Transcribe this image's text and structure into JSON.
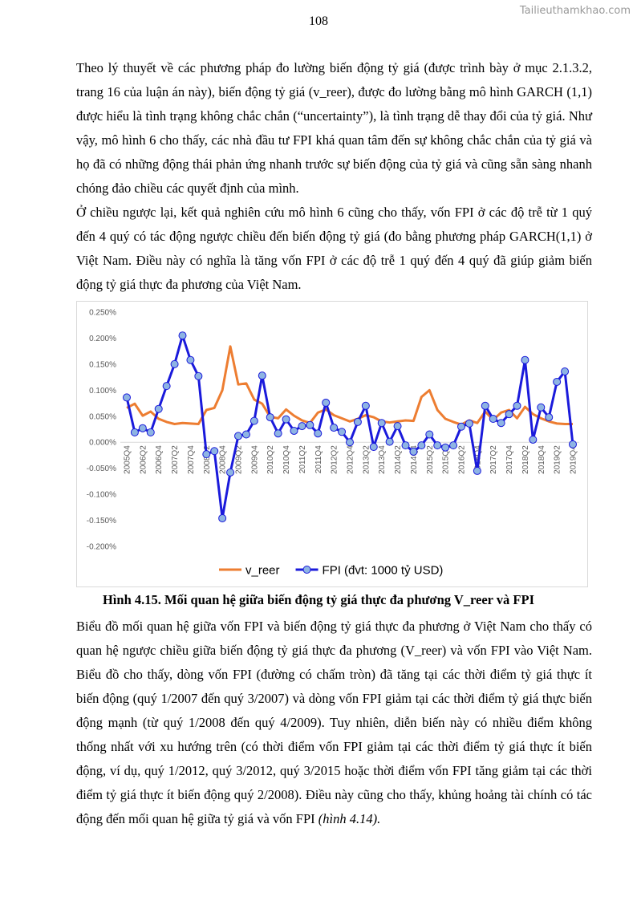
{
  "header": {
    "page_number": "108",
    "watermark": "Tailieuthamkhao.com"
  },
  "paragraphs_before": [
    "Theo lý thuyết về các phương pháp đo lường biến động tỷ giá (được trình bày ở mục 2.1.3.2, trang 16 của luận án này), biến động tỷ giá (v_reer), được đo lường bằng mô hình GARCH (1,1) được hiểu là tình trạng không chắc chắn (“uncertainty”), là tình trạng dễ thay đổi của tỷ giá. Như vậy, mô hình 6 cho thấy, các nhà đầu tư FPI khá quan tâm đến sự không chắc chắn của tỷ giá và họ đã có những động thái phản ứng nhanh trước sự biến động của tỷ giá và cũng sẵn sàng nhanh chóng đảo chiều các quyết định của mình.",
    "Ở chiều ngược lại, kết quả nghiên cứu mô hình 6 cũng cho thấy, vốn FPI ở các độ trễ từ 1 quý đến 4 quý có tác động ngược chiều đến biến động tỷ giá (đo bằng phương pháp GARCH(1,1) ở Việt Nam. Điều này có nghĩa là tăng vốn FPI ở các độ trễ 1 quý đến 4 quý đã giúp giảm biến động tỷ giá thực đa phương của Việt Nam."
  ],
  "chart_data": {
    "type": "line",
    "categories": [
      "2005Q4",
      null,
      "2006Q2",
      null,
      "2006Q4",
      null,
      "2007Q2",
      null,
      "2007Q4",
      null,
      "2008Q2",
      null,
      "2008Q4",
      null,
      "2009Q2",
      null,
      "2009Q4",
      null,
      "2010Q2",
      null,
      "2010Q4",
      null,
      "2011Q2",
      null,
      "2011Q4",
      null,
      "2012Q2",
      null,
      "2012Q4",
      null,
      "2013Q2",
      null,
      "2013Q4",
      null,
      "2014Q2",
      null,
      "2014Q4",
      null,
      "2015Q2",
      null,
      "2015Q4",
      null,
      "2016Q2",
      null,
      "2016Q4",
      null,
      "2017Q2",
      null,
      "2017Q4",
      null,
      "2018Q2",
      null,
      "2018Q4",
      null,
      "2019Q2",
      null,
      "2019Q4"
    ],
    "series": [
      {
        "name": "v_reer",
        "color": "#ed7d31",
        "values": [
          0.066,
          0.074,
          0.051,
          0.059,
          0.045,
          0.039,
          0.035,
          0.037,
          0.036,
          0.035,
          0.062,
          0.066,
          0.1,
          0.184,
          0.111,
          0.113,
          0.082,
          0.074,
          0.049,
          0.046,
          0.063,
          0.051,
          0.042,
          0.037,
          0.057,
          0.063,
          0.052,
          0.046,
          0.04,
          0.045,
          0.052,
          0.048,
          0.04,
          0.038,
          0.04,
          0.042,
          0.041,
          0.087,
          0.1,
          0.062,
          0.045,
          0.039,
          0.034,
          0.042,
          0.037,
          0.059,
          0.043,
          0.057,
          0.062,
          0.046,
          0.068,
          0.054,
          0.046,
          0.04,
          0.036,
          0.035,
          0.035
        ]
      },
      {
        "name": "FPI (đvt: 1000 tỷ USD)",
        "color": "#1a1adb",
        "marker": "circle",
        "marker_color": "#8eb4e3",
        "values": [
          0.086,
          0.019,
          0.027,
          0.019,
          0.064,
          0.108,
          0.15,
          0.205,
          0.158,
          0.127,
          -0.023,
          -0.017,
          -0.146,
          -0.058,
          0.012,
          0.015,
          0.041,
          0.128,
          0.048,
          0.017,
          0.044,
          0.022,
          0.031,
          0.033,
          0.017,
          0.076,
          0.028,
          0.02,
          0.0,
          0.039,
          0.07,
          -0.009,
          0.037,
          0.001,
          0.031,
          -0.006,
          -0.018,
          -0.006,
          0.015,
          -0.006,
          -0.01,
          -0.006,
          0.03,
          0.036,
          -0.055,
          0.07,
          0.045,
          0.037,
          0.054,
          0.07,
          0.158,
          0.005,
          0.067,
          0.048,
          0.116,
          0.136,
          -0.004
        ]
      }
    ],
    "ylim": [
      -0.2,
      0.25
    ],
    "yticks": [
      {
        "value": -0.2,
        "label": "-0.200%"
      },
      {
        "value": -0.15,
        "label": "-0.150%"
      },
      {
        "value": -0.1,
        "label": "-0.100%"
      },
      {
        "value": -0.05,
        "label": "-0.050%"
      },
      {
        "value": 0,
        "label": "0.000%"
      },
      {
        "value": 0.05,
        "label": "0.050%"
      },
      {
        "value": 0.1,
        "label": "0.100%"
      },
      {
        "value": 0.15,
        "label": "0.150%"
      },
      {
        "value": 0.2,
        "label": "0.200%"
      },
      {
        "value": 0.25,
        "label": "0.250%"
      }
    ],
    "grid": false,
    "legend": "bottom"
  },
  "caption": "Hình 4.15.  Mối quan hệ giữa biến động tỷ giá thực đa phương V_reer và FPI",
  "paragraph_after": {
    "text": "Biểu đồ mối quan hệ giữa vốn FPI và biến động tỷ giá thực đa phương ở Việt Nam cho thấy có quan hệ ngược chiều giữa biến động tỷ giá thực đa phương (V_reer) và vốn FPI vào Việt Nam. Biểu đồ cho thấy, dòng vốn FPI (đường có chấm tròn) đã tăng tại các thời điểm tỷ giá thực ít biến động (quý 1/2007 đến quý 3/2007) và dòng vốn FPI giảm tại các thời điểm tỷ giá thực biến động mạnh (từ quý 1/2008 đến quý 4/2009). Tuy nhiên, diễn biến này có nhiều điểm không thống nhất với xu hướng trên (có thời điểm vốn FPI giảm tại các thời điểm tỷ giá thực ít biến động, ví dụ, quý 1/2012, quý 3/2012, quý 3/2015 hoặc thời điểm vốn FPI tăng giảm tại các thời điểm tỷ giá thực ít biến động quý 2/2008). Điều này cũng cho thấy, khủng hoảng tài chính có tác động đến mối quan hệ giữa tỷ giá và vốn FPI ",
    "reference": "(hình 4.14)."
  }
}
